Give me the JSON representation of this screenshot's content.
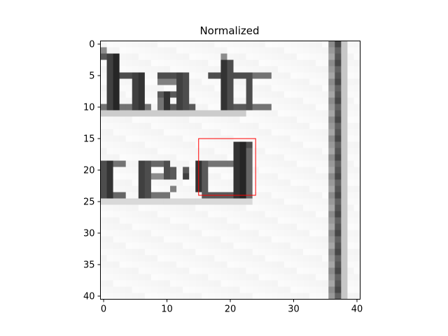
{
  "chart_data": {
    "type": "heatmap",
    "title": "Normalized",
    "colormap": "gray",
    "grid": false,
    "x_range": [
      -0.5,
      40.5
    ],
    "y_range": [
      40.5,
      -0.5
    ],
    "x_ticks": [
      0,
      10,
      20,
      30,
      40
    ],
    "y_ticks": [
      0,
      5,
      10,
      15,
      20,
      25,
      30,
      35,
      40
    ],
    "image_size": [
      41,
      41
    ],
    "image_content": "grayscale crop of a text scan: letters 'hat' (rows 2-11) and 'ced' (rows 16-25) cut at the left edge, with a dark vertical line at column 37",
    "annotation": {
      "shape": "rectangle",
      "color": "#ff0000",
      "x0": 15,
      "x1": 24,
      "y0": 15,
      "y1": 24
    }
  }
}
